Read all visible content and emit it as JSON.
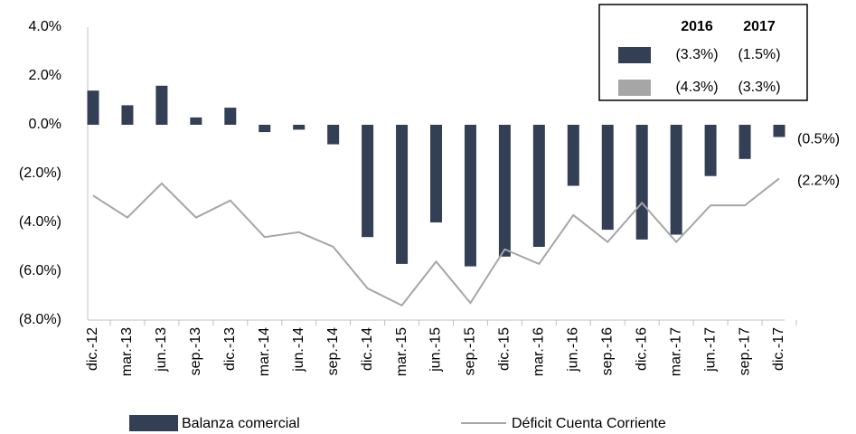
{
  "chart_data": {
    "type": "bar-line",
    "categories": [
      "dic.-12",
      "mar.-13",
      "jun.-13",
      "sep.-13",
      "dic.-13",
      "mar.-14",
      "jun.-14",
      "sep.-14",
      "dic.-14",
      "mar.-15",
      "jun.-15",
      "sep.-15",
      "dic.-15",
      "mar.-16",
      "jun.-16",
      "sep.-16",
      "dic.-16",
      "mar.-17",
      "jun.-17",
      "sep.-17",
      "dic.-17"
    ],
    "series": [
      {
        "name": "Balanza comercial",
        "type": "bar",
        "color": "#333f55",
        "values": [
          1.4,
          0.8,
          1.6,
          0.3,
          0.7,
          -0.3,
          -0.2,
          -0.8,
          -4.6,
          -5.7,
          -4.0,
          -5.8,
          -5.4,
          -5.0,
          -2.5,
          -4.3,
          -4.7,
          -4.5,
          -2.1,
          -1.4,
          -0.5
        ],
        "value_labels": [
          null,
          null,
          null,
          null,
          null,
          null,
          null,
          null,
          null,
          null,
          null,
          null,
          null,
          null,
          null,
          null,
          null,
          null,
          null,
          null,
          "(0.5%)"
        ]
      },
      {
        "name": "Déficit Cuenta Corriente",
        "type": "line",
        "color": "#a6a6a6",
        "values": [
          -2.9,
          -3.8,
          -2.4,
          -3.8,
          -3.1,
          -4.6,
          -4.4,
          -5.0,
          -6.7,
          -7.4,
          -5.6,
          -7.3,
          -5.1,
          -5.7,
          -3.7,
          -4.8,
          -3.2,
          -4.8,
          -3.3,
          -3.3,
          -2.2
        ],
        "value_labels": [
          null,
          null,
          null,
          null,
          null,
          null,
          null,
          null,
          null,
          null,
          null,
          null,
          null,
          null,
          null,
          null,
          null,
          null,
          null,
          null,
          "(2.2%)"
        ]
      }
    ],
    "ylim": [
      -8,
      4
    ],
    "yticks": [
      {
        "value": 4,
        "label": "4.0%"
      },
      {
        "value": 2,
        "label": "2.0%"
      },
      {
        "value": 0,
        "label": "0.0%"
      },
      {
        "value": -2,
        "label": "(2.0%)"
      },
      {
        "value": -4,
        "label": "(4.0%)"
      },
      {
        "value": -6,
        "label": "(6.0%)"
      },
      {
        "value": -8,
        "label": "(8.0%)"
      }
    ],
    "legend_table": {
      "columns": [
        "2016",
        "2017"
      ],
      "rows": [
        [
          "(3.3%)",
          "(1.5%)"
        ],
        [
          "(4.3%)",
          "(3.3%)"
        ]
      ]
    },
    "legend": "bottom"
  }
}
